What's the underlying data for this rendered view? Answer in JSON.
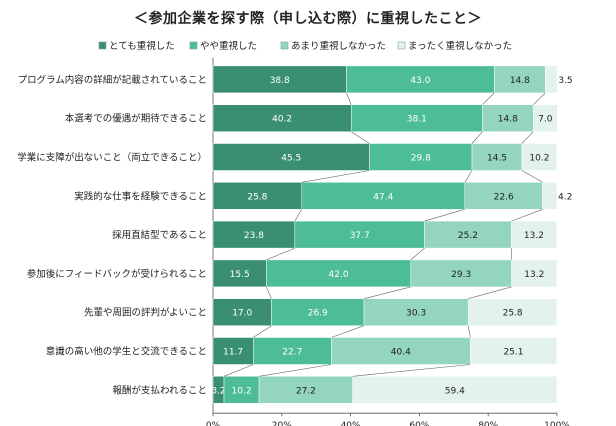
{
  "chart_data": {
    "type": "bar",
    "orientation": "horizontal-stacked-100",
    "title": "＜参加企業を探す際（申し込む際）に重視したこと＞",
    "legend": [
      {
        "name": "とても重視した",
        "color": "#3a8f70"
      },
      {
        "name": "やや重視した",
        "color": "#4dbd99"
      },
      {
        "name": "あまり重視しなかった",
        "color": "#93d5bd"
      },
      {
        "name": "まったく重視しなかった",
        "color": "#e3f3ec"
      }
    ],
    "categories": [
      "プログラム内容の詳細が記載されていること",
      "本選考での優遇が期待できること",
      "学業に支障が出ないこと（両立できること）",
      "実践的な仕事を経験できること",
      "採用直結型であること",
      "参加後にフィードバックが受けられること",
      "先輩や周囲の評判がよいこと",
      "意識の高い他の学生と交流できること",
      "報酬が支払われること"
    ],
    "series": [
      {
        "name": "とても重視した",
        "values": [
          38.8,
          40.2,
          45.5,
          25.8,
          23.8,
          15.5,
          17.0,
          11.7,
          3.2
        ]
      },
      {
        "name": "やや重視した",
        "values": [
          43.0,
          38.1,
          29.8,
          47.4,
          37.7,
          42.0,
          26.9,
          22.7,
          10.2
        ]
      },
      {
        "name": "あまり重視しなかった",
        "values": [
          14.8,
          14.8,
          14.5,
          22.6,
          25.2,
          29.3,
          30.3,
          40.4,
          27.2
        ]
      },
      {
        "name": "まったく重視しなかった",
        "values": [
          3.5,
          7.0,
          10.2,
          4.2,
          13.2,
          13.2,
          25.8,
          25.1,
          59.4
        ]
      }
    ],
    "xlim": [
      0,
      100
    ],
    "xticks": [
      "0%",
      "20%",
      "40%",
      "60%",
      "80%",
      "100%"
    ],
    "legend_position": "top"
  }
}
